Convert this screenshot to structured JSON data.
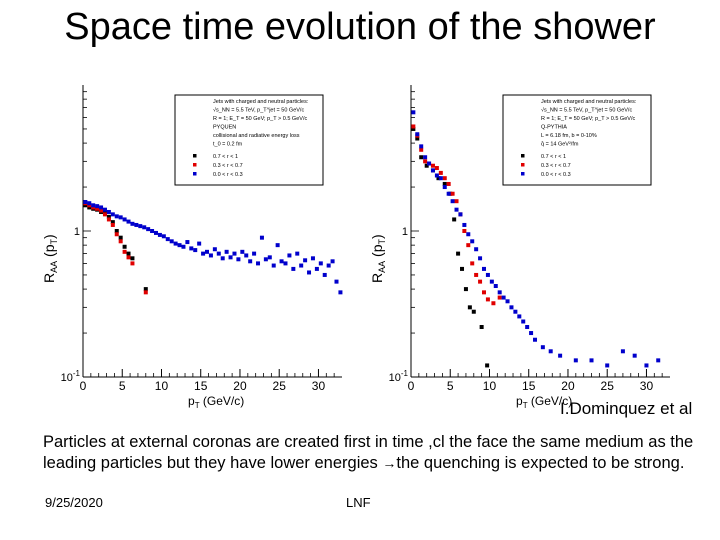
{
  "slide": {
    "title": "Space time evolution of the shower",
    "credit": "I.Dominquez et al",
    "body_before_arrow": "Particles at external coronas are created first in time ,cl the face the same medium as the leading particles but they have lower energies ",
    "body_after_arrow": "the quenching is expected to be strong.",
    "date": "9/25/2020",
    "footer_label": "LNF"
  },
  "colors": {
    "black": "#000000",
    "red": "#e00000",
    "blue": "#0000cc"
  },
  "chart_data": [
    {
      "type": "scatter",
      "xlabel": "p_T (GeV/c)",
      "ylabel": "R_AA (p_T)",
      "yscale": "log",
      "xlim": [
        0,
        33
      ],
      "ylim": [
        0.1,
        10
      ],
      "xticks": [
        "0",
        "5",
        "10",
        "15",
        "20",
        "25",
        "30"
      ],
      "yticks": [
        "10^-1",
        "1"
      ],
      "legend": {
        "position": "top-right",
        "header": [
          "Jets with charged and neutral particles:",
          "√s_NN = 5.5 TeV, p_T^jet = 50 GeV/c",
          "R = 1; E_T = 50 GeV; p_T > 0.5 GeV/c",
          "PYQUEN",
          "collisional and radiative energy loss",
          "t_0 = 0.2 fm"
        ],
        "entries": [
          "0.7 < r < 1",
          "0.3 < r < 0.7",
          "0.0 < r < 0.3"
        ]
      },
      "series": [
        {
          "name": "0.7 < r < 1",
          "color": "#000000",
          "x": [
            0.3,
            0.8,
            1.3,
            1.8,
            2.3,
            2.8,
            3.3,
            3.8,
            4.3,
            4.8,
            5.3,
            5.8,
            6.3,
            8.0
          ],
          "y": [
            1.5,
            1.45,
            1.42,
            1.4,
            1.35,
            1.32,
            1.25,
            1.15,
            1.0,
            0.9,
            0.78,
            0.7,
            0.65,
            0.4
          ]
        },
        {
          "name": "0.3 < r < 0.7",
          "color": "#e00000",
          "x": [
            0.3,
            0.8,
            1.3,
            1.8,
            2.3,
            2.8,
            3.3,
            3.8,
            4.3,
            4.8,
            5.3,
            5.8,
            6.3,
            8.0
          ],
          "y": [
            1.55,
            1.5,
            1.45,
            1.42,
            1.38,
            1.3,
            1.2,
            1.1,
            0.95,
            0.85,
            0.72,
            0.66,
            0.6,
            0.38
          ]
        },
        {
          "name": "0.0 < r < 0.3",
          "color": "#0000cc",
          "x": [
            0.3,
            0.8,
            1.3,
            1.8,
            2.3,
            2.8,
            3.3,
            3.8,
            4.3,
            4.8,
            5.3,
            5.8,
            6.3,
            6.8,
            7.3,
            7.8,
            8.3,
            8.8,
            9.3,
            9.8,
            10.3,
            10.8,
            11.3,
            11.8,
            12.3,
            12.8,
            13.3,
            13.8,
            14.3,
            14.8,
            15.3,
            15.8,
            16.3,
            16.8,
            17.3,
            17.8,
            18.3,
            18.8,
            19.3,
            19.8,
            20.3,
            20.8,
            21.3,
            21.8,
            22.3,
            22.8,
            23.3,
            23.8,
            24.3,
            24.8,
            25.3,
            25.8,
            26.3,
            26.8,
            27.3,
            27.8,
            28.3,
            28.8,
            29.3,
            29.8,
            30.3,
            30.8,
            31.3,
            31.8,
            32.3,
            32.8
          ],
          "y": [
            1.58,
            1.55,
            1.5,
            1.48,
            1.45,
            1.4,
            1.35,
            1.3,
            1.26,
            1.24,
            1.2,
            1.16,
            1.12,
            1.1,
            1.08,
            1.06,
            1.03,
            1.0,
            0.97,
            0.94,
            0.92,
            0.88,
            0.85,
            0.82,
            0.8,
            0.78,
            0.84,
            0.76,
            0.74,
            0.82,
            0.7,
            0.72,
            0.68,
            0.75,
            0.7,
            0.65,
            0.72,
            0.66,
            0.7,
            0.64,
            0.72,
            0.68,
            0.62,
            0.7,
            0.6,
            0.9,
            0.64,
            0.66,
            0.58,
            0.8,
            0.62,
            0.6,
            0.68,
            0.55,
            0.7,
            0.58,
            0.63,
            0.52,
            0.65,
            0.55,
            0.6,
            0.5,
            0.58,
            0.62,
            0.45,
            0.38
          ]
        }
      ]
    },
    {
      "type": "scatter",
      "xlabel": "p_T (GeV/c)",
      "ylabel": "R_AA (p_T)",
      "yscale": "log",
      "xlim": [
        0,
        33
      ],
      "ylim": [
        0.1,
        10
      ],
      "xticks": [
        "0",
        "5",
        "10",
        "15",
        "20",
        "25",
        "30"
      ],
      "yticks": [
        "10^-1",
        "1"
      ],
      "legend": {
        "position": "top-right",
        "header": [
          "Jets with charged and neutral particles:",
          "√s_NN = 5.5 TeV, p_T^jet = 50 GeV/c",
          "R = 1; E_T = 50 GeV; p_T > 0.5 GeV/c",
          "Q-PYTHIA",
          "L = 6.18 fm, b = 0-10%",
          "q̂ = 14 GeV²/fm"
        ],
        "entries": [
          "0.7 < r < 1",
          "0.3 < r < 0.7",
          "0.0 < r < 0.3"
        ]
      },
      "series": [
        {
          "name": "0.7 < r < 1",
          "color": "#000000",
          "x": [
            0.3,
            0.8,
            1.3,
            2.0,
            2.8,
            3.5,
            4.3,
            5.0,
            5.5,
            6.0,
            6.5,
            7.0,
            7.5,
            8.0,
            9.0,
            9.7
          ],
          "y": [
            5.0,
            4.3,
            3.2,
            2.8,
            2.6,
            2.3,
            2.1,
            1.8,
            1.2,
            0.7,
            0.55,
            0.4,
            0.3,
            0.28,
            0.22,
            0.12
          ]
        },
        {
          "name": "0.3 < r < 0.7",
          "color": "#e00000",
          "x": [
            0.3,
            0.8,
            1.3,
            1.8,
            2.3,
            2.8,
            3.3,
            3.8,
            4.3,
            4.8,
            5.3,
            5.8,
            6.3,
            6.8,
            7.3,
            7.8,
            8.3,
            8.8,
            9.3,
            9.8,
            10.5,
            11.3
          ],
          "y": [
            5.2,
            4.5,
            3.6,
            3.0,
            2.9,
            2.8,
            2.7,
            2.5,
            2.3,
            2.1,
            1.8,
            1.6,
            1.3,
            1.0,
            0.8,
            0.6,
            0.5,
            0.45,
            0.38,
            0.34,
            0.32,
            0.35
          ]
        },
        {
          "name": "0.0 < r < 0.3",
          "color": "#0000cc",
          "x": [
            0.3,
            0.8,
            1.3,
            1.8,
            2.3,
            2.8,
            3.3,
            3.8,
            4.3,
            4.8,
            5.3,
            5.8,
            6.3,
            6.8,
            7.3,
            7.8,
            8.3,
            8.8,
            9.3,
            9.8,
            10.3,
            10.8,
            11.3,
            11.8,
            12.3,
            12.8,
            13.3,
            13.8,
            14.3,
            14.8,
            15.3,
            15.8,
            16.8,
            17.8,
            19.0,
            21.0,
            23.0,
            25.0,
            27.0,
            28.5,
            30.0,
            31.5
          ],
          "y": [
            6.5,
            4.6,
            3.8,
            3.2,
            2.9,
            2.6,
            2.4,
            2.3,
            2.0,
            1.8,
            1.6,
            1.4,
            1.3,
            1.1,
            0.95,
            0.85,
            0.75,
            0.65,
            0.55,
            0.5,
            0.45,
            0.42,
            0.38,
            0.35,
            0.33,
            0.3,
            0.28,
            0.26,
            0.24,
            0.22,
            0.2,
            0.18,
            0.16,
            0.15,
            0.14,
            0.13,
            0.13,
            0.12,
            0.15,
            0.14,
            0.12,
            0.13
          ]
        }
      ]
    }
  ]
}
